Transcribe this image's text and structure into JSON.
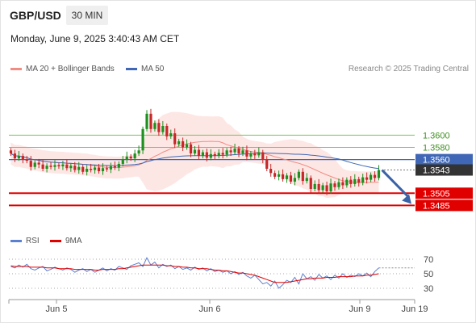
{
  "header": {
    "symbol": "GBP/USD",
    "timeframe": "30 MIN",
    "datetime": "Monday, June 9, 2025 3:40:43 AM CET"
  },
  "legend": {
    "ma20": "MA 20 + Bollinger Bands",
    "ma50": "MA 50",
    "credit": "Research © 2025 Trading Central",
    "rsi": "RSI",
    "ma9": "9MA"
  },
  "colors": {
    "up": "#1f8f1f",
    "down": "#c62828",
    "ma20": "#f28b82",
    "ma50": "#3f67b5",
    "resistance": "#7cc45a",
    "pivot": "#3f67b5",
    "support": "#e00000",
    "current": "#333333",
    "arrow": "#3a62a8"
  },
  "chart_data": [
    {
      "type": "candlestick",
      "ylim": [
        1.3475,
        1.3685
      ],
      "levels": [
        {
          "value": 1.36,
          "label": "1.3600",
          "kind": "resistance"
        },
        {
          "value": 1.358,
          "label": "1.3580",
          "kind": "resistance"
        },
        {
          "value": 1.356,
          "label": "1.3560",
          "kind": "pivot"
        },
        {
          "value": 1.3543,
          "label": "1.3543",
          "kind": "current"
        },
        {
          "value": 1.3505,
          "label": "1.3505",
          "kind": "support"
        },
        {
          "value": 1.3485,
          "label": "1.3485",
          "kind": "support"
        }
      ],
      "forecast": {
        "from": 1.3543,
        "to": 1.349
      },
      "x_ticks": [
        "Jun 5",
        "Jun 6",
        "Jun 9",
        "Jun 19"
      ],
      "closes": [
        1.357,
        1.3562,
        1.3566,
        1.356,
        1.3558,
        1.3548,
        1.3555,
        1.3552,
        1.3545,
        1.355,
        1.3548,
        1.3551,
        1.3549,
        1.3552,
        1.3546,
        1.355,
        1.3543,
        1.3548,
        1.354,
        1.3545,
        1.3543,
        1.3547,
        1.3541,
        1.3546,
        1.3544,
        1.3549,
        1.3547,
        1.3553,
        1.356,
        1.3565,
        1.3562,
        1.357,
        1.3575,
        1.361,
        1.3635,
        1.361,
        1.362,
        1.3605,
        1.3615,
        1.3598,
        1.3603,
        1.3585,
        1.359,
        1.358,
        1.3585,
        1.357,
        1.3576,
        1.3566,
        1.3572,
        1.3563,
        1.3569,
        1.3566,
        1.3571,
        1.3568,
        1.3575,
        1.3572,
        1.3578,
        1.357,
        1.3575,
        1.3565,
        1.357,
        1.3567,
        1.3572,
        1.356,
        1.3545,
        1.3538,
        1.3532,
        1.3536,
        1.3528,
        1.3534,
        1.3524,
        1.353,
        1.354,
        1.3525,
        1.353,
        1.3512,
        1.352,
        1.351,
        1.3518,
        1.3508,
        1.3521,
        1.3515,
        1.3523,
        1.3518,
        1.3527,
        1.352,
        1.3528,
        1.3522,
        1.3531,
        1.3527,
        1.3535,
        1.353,
        1.3543
      ]
    },
    {
      "type": "line",
      "title": "RSI",
      "ylim": [
        20,
        80
      ],
      "y_ticks": [
        70,
        50,
        30
      ],
      "series": [
        {
          "name": "RSI",
          "values": [
            60,
            58,
            62,
            59,
            63,
            57,
            55,
            58,
            60,
            54,
            56,
            59,
            57,
            55,
            58,
            56,
            52,
            55,
            57,
            53,
            56,
            52,
            55,
            58,
            54,
            57,
            55,
            60,
            58,
            56,
            61,
            63,
            65,
            60,
            72,
            62,
            66,
            58,
            63,
            60,
            62,
            57,
            60,
            56,
            58,
            55,
            59,
            56,
            58,
            54,
            57,
            53,
            55,
            52,
            54,
            50,
            53,
            49,
            52,
            47,
            44,
            48,
            42,
            36,
            38,
            33,
            40,
            30,
            35,
            41,
            38,
            45,
            36,
            50,
            43,
            46,
            41,
            49,
            44,
            47,
            42,
            48,
            44,
            50,
            45,
            48,
            46,
            50,
            47,
            51,
            46,
            53,
            58
          ]
        },
        {
          "name": "9MA",
          "values": [
            61,
            60,
            60,
            60,
            60,
            59,
            59,
            59,
            59,
            58,
            58,
            58,
            57,
            57,
            57,
            57,
            56,
            56,
            56,
            56,
            56,
            55,
            55,
            56,
            56,
            56,
            56,
            57,
            57,
            58,
            59,
            60,
            61,
            62,
            62,
            62,
            62,
            62,
            62,
            61,
            61,
            60,
            60,
            59,
            59,
            58,
            58,
            57,
            57,
            57,
            56,
            55,
            55,
            54,
            54,
            53,
            52,
            51,
            51,
            50,
            49,
            48,
            46,
            44,
            42,
            40,
            38,
            38,
            38,
            38,
            39,
            40,
            41,
            42,
            43,
            43,
            44,
            44,
            44,
            45,
            45,
            45,
            46,
            46,
            46,
            46,
            47,
            47,
            47,
            48,
            48,
            49,
            50
          ]
        }
      ]
    }
  ]
}
